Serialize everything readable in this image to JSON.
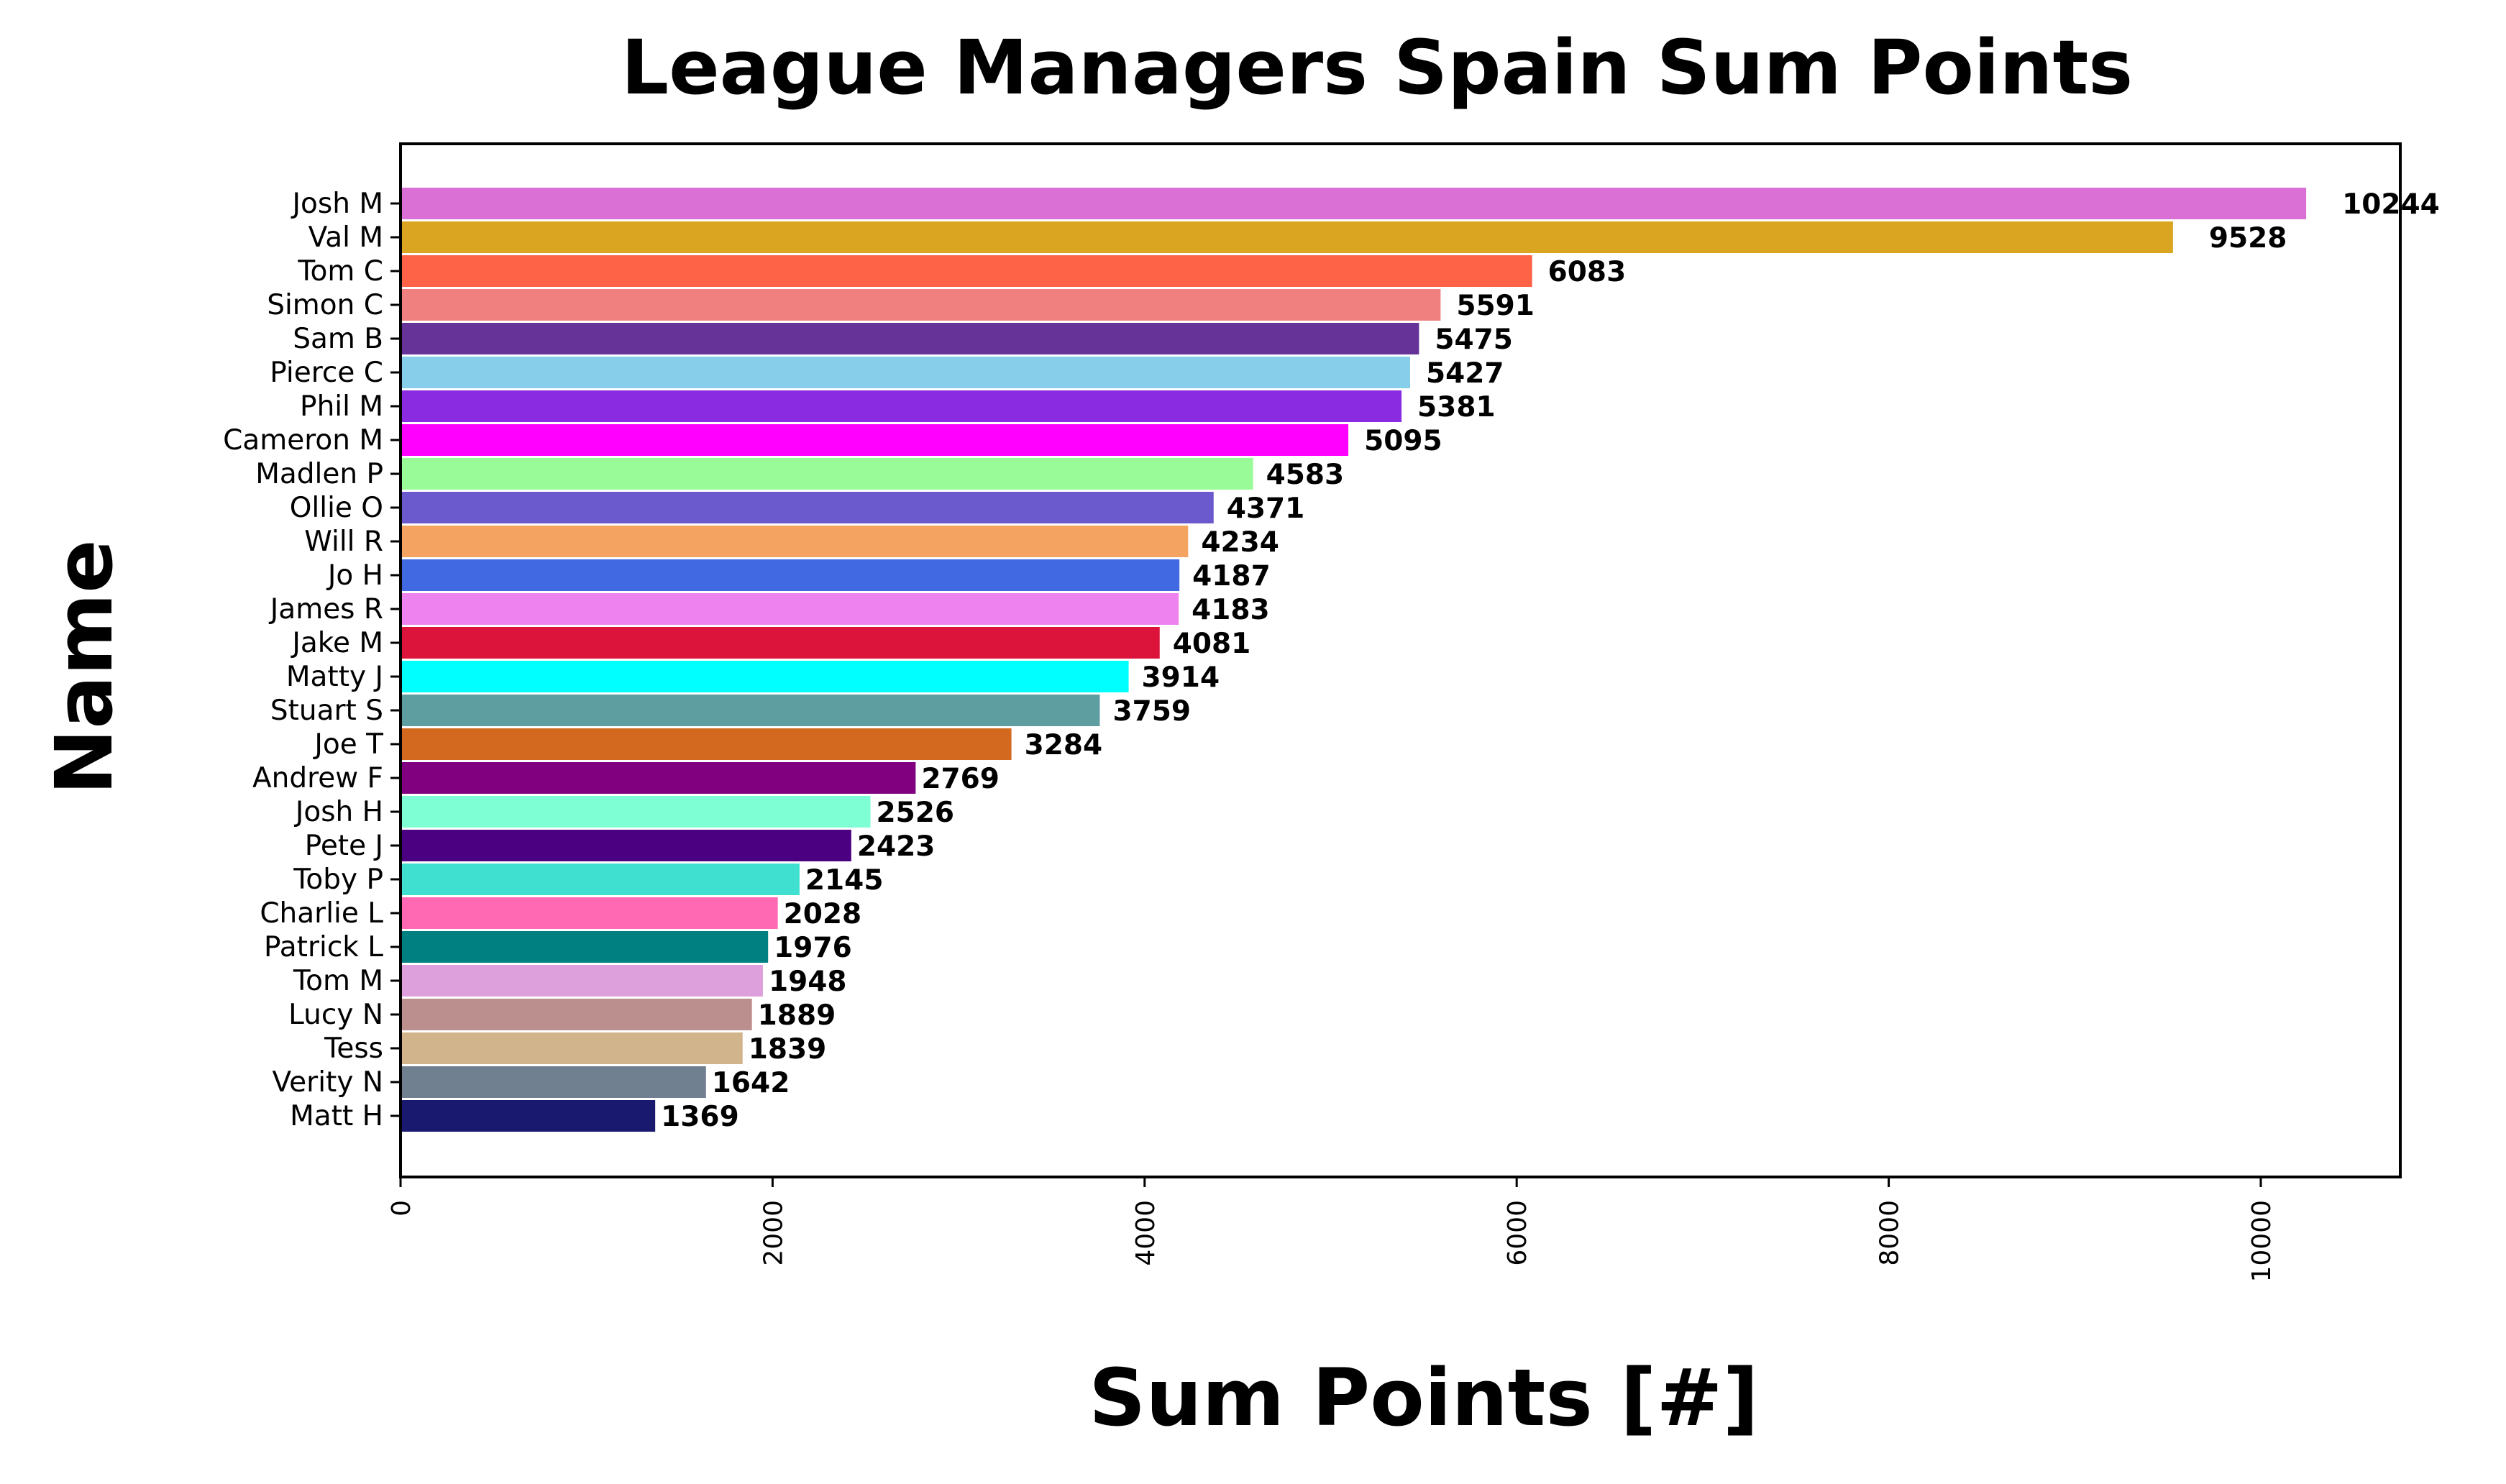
{
  "chart_data": {
    "type": "bar",
    "orientation": "horizontal",
    "title": "League Managers Spain Sum Points",
    "xlabel": "Sum Points [#]",
    "ylabel": "Name",
    "xlim": [
      0,
      10750
    ],
    "xticks": [
      0,
      2000,
      4000,
      6000,
      8000,
      10000
    ],
    "xtick_labels": [
      "0",
      "2000",
      "4000",
      "6000",
      "8000",
      "10000"
    ],
    "grid": false,
    "legend": "none",
    "categories": [
      "Josh M",
      "Val M",
      "Tom C",
      "Simon C",
      "Sam B",
      "Pierce C",
      "Phil M",
      "Cameron M",
      "Madlen P",
      "Ollie O",
      "Will R",
      "Jo H",
      "James R",
      "Jake M",
      "Matty J",
      "Stuart S",
      "Joe T",
      "Andrew F",
      "Josh H",
      "Pete J",
      "Toby P",
      "Charlie L",
      "Patrick L",
      "Tom M",
      "Lucy N",
      "Tess",
      "Verity N",
      "Matt H"
    ],
    "values": [
      10244,
      9528,
      6083,
      5591,
      5475,
      5427,
      5381,
      5095,
      4583,
      4371,
      4234,
      4187,
      4183,
      4081,
      3914,
      3759,
      3284,
      2769,
      2526,
      2423,
      2145,
      2028,
      1976,
      1948,
      1889,
      1839,
      1642,
      1369
    ],
    "value_labels": [
      "10244",
      "9528",
      "6083",
      "5591",
      "5475",
      "5427",
      "5381",
      "5095",
      "4583",
      "4371",
      "4234",
      "4187",
      "4183",
      "4081",
      "3914",
      "3759",
      "3284",
      "2769",
      "2526",
      "2423",
      "2145",
      "2028",
      "1976",
      "1948",
      "1889",
      "1839",
      "1642",
      "1369"
    ],
    "colors": [
      "#DA70D6",
      "#DAA520",
      "#FF6347",
      "#F08080",
      "#663399",
      "#87CEEB",
      "#8A2BE2",
      "#FF00FF",
      "#98FB98",
      "#6A5ACD",
      "#F4A460",
      "#4169E1",
      "#EE82EE",
      "#DC143C",
      "#00FFFF",
      "#5F9EA0",
      "#D2691E",
      "#800080",
      "#7FFFD4",
      "#4B0082",
      "#40E0D0",
      "#FF69B4",
      "#008080",
      "#DDA0DD",
      "#BC8F8F",
      "#D2B48C",
      "#708090",
      "#191970"
    ]
  }
}
